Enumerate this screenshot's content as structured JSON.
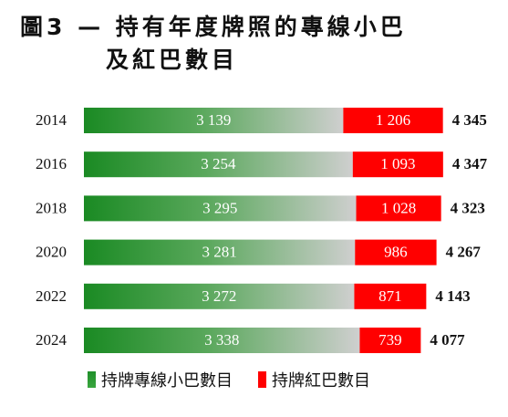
{
  "title": {
    "line1": "圖3 — 持有年度牌照的專線小巴",
    "line2": "及紅巴數目"
  },
  "colors": {
    "green": "#1a8a23",
    "green_fade": "#cfcfcf",
    "red": "#ff0000"
  },
  "chart_data": {
    "type": "bar",
    "orientation": "horizontal",
    "stacked": true,
    "categories": [
      "2014",
      "2016",
      "2018",
      "2020",
      "2022",
      "2024"
    ],
    "series": [
      {
        "name": "持牌專線小巴數目",
        "values": [
          3139,
          3254,
          3295,
          3281,
          3272,
          3338
        ],
        "labels": [
          "3 139",
          "3 254",
          "3 295",
          "3 281",
          "3 272",
          "3 338"
        ]
      },
      {
        "name": "持牌紅巴數目",
        "values": [
          1206,
          1093,
          1028,
          986,
          871,
          739
        ],
        "labels": [
          "1 206",
          "1 093",
          "1 028",
          "986",
          "871",
          "739"
        ]
      }
    ],
    "totals": [
      4345,
      4347,
      4323,
      4267,
      4143,
      4077
    ],
    "total_labels": [
      "4 345",
      "4 347",
      "4 323",
      "4 267",
      "4 143",
      "4 077"
    ],
    "grid": false,
    "legend_position": "bottom"
  }
}
